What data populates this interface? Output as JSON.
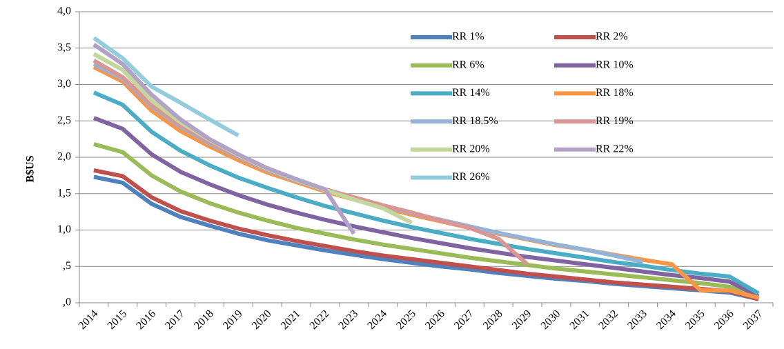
{
  "chart_data": {
    "type": "line",
    "y_label": "B$US",
    "categories": [
      "2014",
      "2015",
      "2016",
      "2017",
      "2018",
      "2019",
      "2020",
      "2021",
      "2022",
      "2023",
      "2024",
      "2025",
      "2026",
      "2027",
      "2028",
      "2029",
      "2030",
      "2031",
      "2032",
      "2033",
      "2034",
      "2035",
      "2036",
      "2037"
    ],
    "ylim": [
      0,
      4
    ],
    "yticks": [
      {
        "value": 0,
        "label": ",0"
      },
      {
        "value": 0.5,
        "label": ",5"
      },
      {
        "value": 1,
        "label": "1,0"
      },
      {
        "value": 1.5,
        "label": "1,5"
      },
      {
        "value": 2,
        "label": "2,0"
      },
      {
        "value": 2.5,
        "label": "2,5"
      },
      {
        "value": 3,
        "label": "3,0"
      },
      {
        "value": 3.5,
        "label": "3,5"
      },
      {
        "value": 4,
        "label": "4,0"
      }
    ],
    "grid": true,
    "series": [
      {
        "name": "RR 1%",
        "color": "#4f81bd",
        "values": [
          1.73,
          1.65,
          1.36,
          1.18,
          1.06,
          0.95,
          0.86,
          0.79,
          0.72,
          0.66,
          0.6,
          0.55,
          0.5,
          0.46,
          0.41,
          0.37,
          0.33,
          0.3,
          0.26,
          0.23,
          0.2,
          0.17,
          0.14,
          0.05
        ]
      },
      {
        "name": "RR 2%",
        "color": "#c0504d",
        "values": [
          1.82,
          1.74,
          1.45,
          1.26,
          1.13,
          1.02,
          0.93,
          0.85,
          0.78,
          0.71,
          0.65,
          0.6,
          0.55,
          0.5,
          0.45,
          0.4,
          0.36,
          0.32,
          0.28,
          0.25,
          0.22,
          0.19,
          0.16,
          0.05
        ]
      },
      {
        "name": "RR 6%",
        "color": "#9bbb59",
        "values": [
          2.18,
          2.07,
          1.75,
          1.53,
          1.37,
          1.24,
          1.13,
          1.03,
          0.95,
          0.87,
          0.8,
          0.74,
          0.68,
          0.62,
          0.57,
          0.52,
          0.47,
          0.43,
          0.39,
          0.35,
          0.31,
          0.27,
          0.22,
          0.07
        ]
      },
      {
        "name": "RR 10%",
        "color": "#8064a2",
        "values": [
          2.54,
          2.39,
          2.04,
          1.8,
          1.63,
          1.48,
          1.35,
          1.24,
          1.14,
          1.05,
          0.97,
          0.89,
          0.82,
          0.75,
          0.69,
          0.63,
          0.58,
          0.53,
          0.48,
          0.43,
          0.38,
          0.34,
          0.29,
          0.09
        ]
      },
      {
        "name": "RR 14%",
        "color": "#4bacc6",
        "values": [
          2.89,
          2.72,
          2.35,
          2.09,
          1.89,
          1.72,
          1.58,
          1.45,
          1.33,
          1.23,
          1.13,
          1.04,
          0.96,
          0.88,
          0.81,
          0.74,
          0.68,
          0.62,
          0.56,
          0.51,
          0.45,
          0.4,
          0.36,
          0.13
        ]
      },
      {
        "name": "RR 18%",
        "color": "#f79646",
        "values": [
          3.24,
          3.04,
          2.64,
          2.36,
          2.15,
          1.96,
          1.79,
          1.66,
          1.53,
          1.42,
          1.31,
          1.21,
          1.12,
          1.03,
          0.95,
          0.87,
          0.79,
          0.73,
          0.66,
          0.59,
          0.53,
          0.17,
          0.17,
          0.07
        ]
      },
      {
        "name": "RR 18.5%",
        "color": "#95b3d7",
        "values": [
          3.28,
          3.08,
          2.7,
          2.42,
          2.19,
          2.0,
          1.82,
          1.68,
          1.55,
          1.44,
          1.33,
          1.23,
          1.14,
          1.05,
          0.96,
          0.88,
          0.8,
          0.73,
          0.65,
          0.56,
          null,
          null,
          null,
          null
        ]
      },
      {
        "name": "RR 19%",
        "color": "#d99694",
        "values": [
          3.33,
          3.1,
          2.72,
          2.44,
          2.21,
          2.01,
          1.83,
          1.69,
          1.56,
          1.45,
          1.34,
          1.24,
          1.13,
          1.03,
          0.88,
          0.53,
          null,
          null,
          null,
          null,
          null,
          null,
          null,
          null
        ]
      },
      {
        "name": "RR 20%",
        "color": "#c3d69b",
        "values": [
          3.42,
          3.2,
          2.78,
          2.48,
          2.24,
          2.03,
          1.84,
          1.69,
          1.55,
          1.42,
          1.3,
          1.1,
          null,
          null,
          null,
          null,
          null,
          null,
          null,
          null,
          null,
          null,
          null,
          null
        ]
      },
      {
        "name": "RR 22%",
        "color": "#b3a2c7",
        "values": [
          3.55,
          3.28,
          2.86,
          2.52,
          2.25,
          2.04,
          1.85,
          1.7,
          1.56,
          0.95,
          null,
          null,
          null,
          null,
          null,
          null,
          null,
          null,
          null,
          null,
          null,
          null,
          null,
          null
        ]
      },
      {
        "name": "RR 26%",
        "color": "#93cddd",
        "values": [
          3.64,
          3.36,
          2.97,
          2.75,
          2.52,
          2.3,
          null,
          null,
          null,
          null,
          null,
          null,
          null,
          null,
          null,
          null,
          null,
          null,
          null,
          null,
          null,
          null,
          null,
          null
        ]
      }
    ]
  }
}
